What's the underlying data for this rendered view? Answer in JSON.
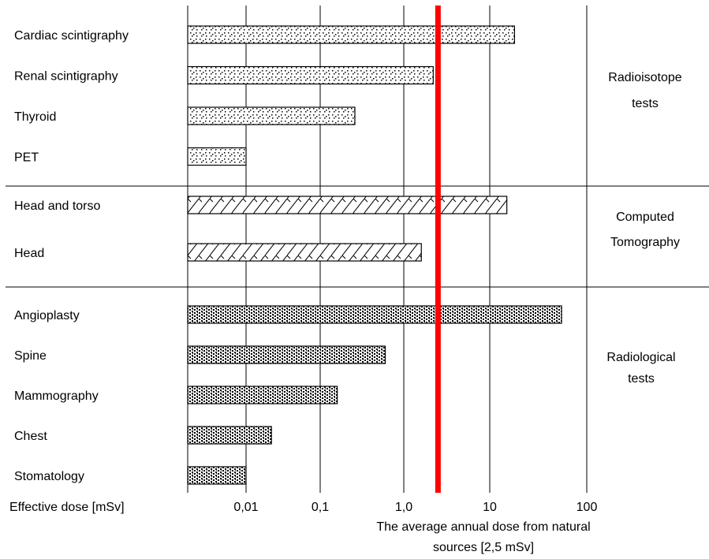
{
  "chart_data": {
    "type": "bar",
    "orientation": "horizontal",
    "xscale": "log",
    "xlim": [
      0.001,
      1000
    ],
    "xlabel": "Effective dose [mSv]",
    "xtick_values": [
      0.01,
      0.1,
      1,
      10,
      100
    ],
    "xtick_labels": [
      "0,01",
      "0,1",
      "1,0",
      "10",
      "100"
    ],
    "grid": true,
    "groups": [
      {
        "label_lines": [
          "Radioisotope",
          "tests"
        ],
        "pattern": "dots",
        "items": [
          {
            "label": "Cardiac scintigraphy",
            "value": 18
          },
          {
            "label": "Renal scintigraphy",
            "value": 2.2
          },
          {
            "label": "Thyroid",
            "value": 0.26
          },
          {
            "label": "PET",
            "value": 0.01
          }
        ]
      },
      {
        "label_lines": [
          "Computed",
          "Tomography"
        ],
        "pattern": "hatch",
        "items": [
          {
            "label": "Head and torso",
            "value": 15
          },
          {
            "label": "Head",
            "value": 1.6
          }
        ]
      },
      {
        "label_lines": [
          "Radiological",
          "tests"
        ],
        "pattern": "checker",
        "items": [
          {
            "label": "Angioplasty",
            "value": 55
          },
          {
            "label": "Spine",
            "value": 0.6
          },
          {
            "label": "Mammography",
            "value": 0.16
          },
          {
            "label": "Chest",
            "value": 0.022
          },
          {
            "label": "Stomatology",
            "value": 0.01
          }
        ]
      }
    ],
    "reference_line": {
      "value": 2.5,
      "color": "#ff0000",
      "label_lines": [
        "The average annual dose from natural",
        "sources [2,5 mSv]"
      ]
    }
  }
}
